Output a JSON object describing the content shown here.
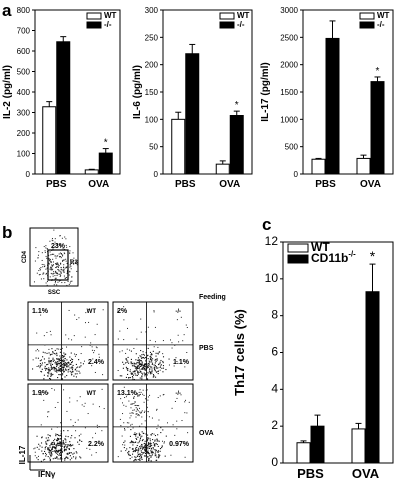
{
  "panels": {
    "a": "a",
    "b": "b",
    "c": "c"
  },
  "chart_data": [
    {
      "type": "bar",
      "panel": "a",
      "ylabel": "IL-2 (pg/ml)",
      "categories": [
        "PBS",
        "OVA"
      ],
      "ylim": [
        0,
        800
      ],
      "yticks": [
        "0",
        "100",
        "200",
        "300",
        "400",
        "500",
        "600",
        "700",
        "800"
      ],
      "legend": [
        "WT",
        "-/-"
      ],
      "series": [
        {
          "name": "WT",
          "values": [
            328,
            20
          ],
          "errors": [
            25,
            3
          ],
          "fill": "#ffffff"
        },
        {
          "name": "-/-",
          "values": [
            645,
            102
          ],
          "errors": [
            25,
            22
          ],
          "fill": "#000000"
        }
      ],
      "annotations": [
        {
          "text": "*",
          "category": "OVA",
          "series": "-/-"
        }
      ]
    },
    {
      "type": "bar",
      "panel": "a",
      "ylabel": "IL-6 (pg/ml)",
      "categories": [
        "PBS",
        "OVA"
      ],
      "ylim": [
        0,
        300
      ],
      "yticks": [
        "0",
        "50",
        "100",
        "150",
        "200",
        "250",
        "300"
      ],
      "legend": [
        "WT",
        "-/-"
      ],
      "series": [
        {
          "name": "WT",
          "values": [
            100,
            18
          ],
          "errors": [
            13,
            6
          ],
          "fill": "#ffffff"
        },
        {
          "name": "-/-",
          "values": [
            220,
            107
          ],
          "errors": [
            17,
            8
          ],
          "fill": "#000000"
        }
      ],
      "annotations": [
        {
          "text": "*",
          "category": "OVA",
          "series": "-/-"
        }
      ]
    },
    {
      "type": "bar",
      "panel": "a",
      "ylabel": "IL-17 (pg/ml)",
      "categories": [
        "PBS",
        "OVA"
      ],
      "ylim": [
        0,
        3000
      ],
      "yticks": [
        "0",
        "500",
        "1000",
        "1500",
        "2000",
        "2500",
        "3000"
      ],
      "legend": [
        "WT",
        "-/-"
      ],
      "series": [
        {
          "name": "WT",
          "values": [
            270,
            285
          ],
          "errors": [
            15,
            60
          ],
          "fill": "#ffffff"
        },
        {
          "name": "-/-",
          "values": [
            2480,
            1690
          ],
          "errors": [
            320,
            85
          ],
          "fill": "#000000"
        }
      ],
      "annotations": [
        {
          "text": "*",
          "category": "OVA",
          "series": "-/-"
        }
      ]
    },
    {
      "type": "scatter",
      "panel": "b",
      "description_labels": {
        "gate_xlabel": "SSC",
        "gate_ylabel": "CD4",
        "gate_pct": "23%",
        "gate_region": "R3",
        "feeding": "Feeding",
        "xlabel": "IFNγ",
        "ylabel": "IL-17"
      },
      "plots": [
        {
          "row": "PBS",
          "genotype": "WT",
          "upper_left": "1.1%",
          "lower_right": "2.4%"
        },
        {
          "row": "PBS",
          "genotype": "-/-",
          "upper_left": "2%",
          "lower_right": "1.1%"
        },
        {
          "row": "OVA",
          "genotype": "WT",
          "upper_left": "1.9%",
          "lower_right": "2.2%"
        },
        {
          "row": "OVA",
          "genotype": "-/-",
          "upper_left": "13.1%",
          "lower_right": "0.97%"
        }
      ]
    },
    {
      "type": "bar",
      "panel": "c",
      "ylabel": "Th17 cells (%)",
      "categories": [
        "PBS",
        "OVA"
      ],
      "ylim": [
        0,
        12
      ],
      "yticks": [
        "0",
        "2",
        "4",
        "6",
        "8",
        "10",
        "12"
      ],
      "legend": [
        "WT",
        "CD11b"
      ],
      "legend_sup": "-/-",
      "series": [
        {
          "name": "WT",
          "values": [
            1.1,
            1.85
          ],
          "errors": [
            0.1,
            0.3
          ],
          "fill": "#ffffff"
        },
        {
          "name": "CD11b-/-",
          "values": [
            2.0,
            9.3
          ],
          "errors": [
            0.6,
            1.5
          ],
          "fill": "#000000"
        }
      ],
      "annotations": [
        {
          "text": "*",
          "category": "OVA",
          "series": "CD11b-/-"
        }
      ]
    }
  ]
}
